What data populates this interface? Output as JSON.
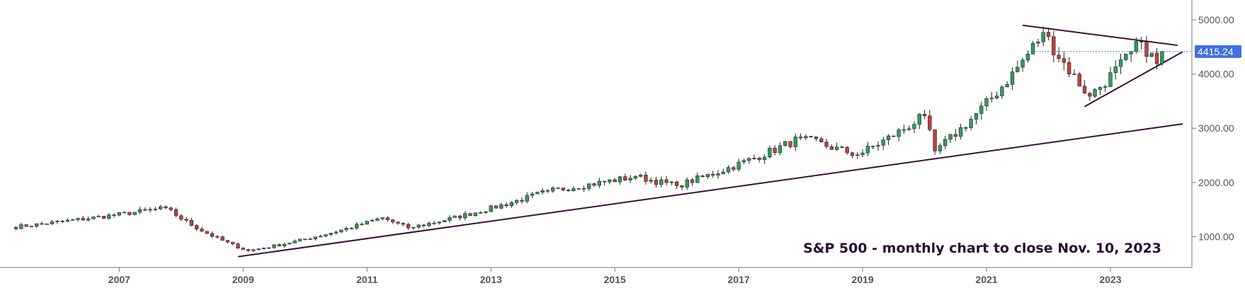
{
  "chart_data": {
    "type": "candlestick",
    "title": "S&P 500 - monthly chart to close Nov. 10, 2023",
    "x_axis": {
      "tick_labels": [
        "2007",
        "2009",
        "2011",
        "2013",
        "2015",
        "2017",
        "2019",
        "2021",
        "2023"
      ],
      "range": [
        "2005-03",
        "2024-03"
      ]
    },
    "y_axis": {
      "tick_labels": [
        "1000.00",
        "2000.00",
        "3000.00",
        "4000.00",
        "5000.00"
      ],
      "range": [
        431,
        5262
      ],
      "side": "right"
    },
    "last_price": {
      "label": "4415.24",
      "value": 4415.24,
      "color": "#3f6fe0"
    },
    "colors": {
      "up": "#2e9e5e",
      "down": "#c0413b",
      "trendline": "#3a1040",
      "axis": "#555555",
      "grid": "#eeeeee",
      "price_line": "#3f6fe0"
    },
    "trendlines": [
      {
        "name": "long-term support",
        "from": [
          "2008-12",
          630
        ],
        "to": [
          "2024-03",
          3080
        ]
      },
      {
        "name": "upper triangle resistance",
        "from": [
          "2021-08",
          4900
        ],
        "to": [
          "2024-02",
          4530
        ]
      },
      {
        "name": "lower triangle support",
        "from": [
          "2022-08",
          3400
        ],
        "to": [
          "2024-03",
          4410
        ]
      }
    ],
    "anchors": [
      [
        "2005-04",
        1170
      ],
      [
        "2007-10",
        1530
      ],
      [
        "2009-02",
        740
      ],
      [
        "2011-04",
        1350
      ],
      [
        "2011-09",
        1160
      ],
      [
        "2013-12",
        1840
      ],
      [
        "2015-05",
        2110
      ],
      [
        "2016-01",
        1940
      ],
      [
        "2018-01",
        2820
      ],
      [
        "2018-12",
        2510
      ],
      [
        "2020-01",
        3230
      ],
      [
        "2020-03",
        2580
      ],
      [
        "2021-12",
        4770
      ],
      [
        "2022-09",
        3590
      ],
      [
        "2023-07",
        4590
      ],
      [
        "2023-10",
        4190
      ],
      [
        "2023-11",
        4415.24
      ]
    ]
  }
}
